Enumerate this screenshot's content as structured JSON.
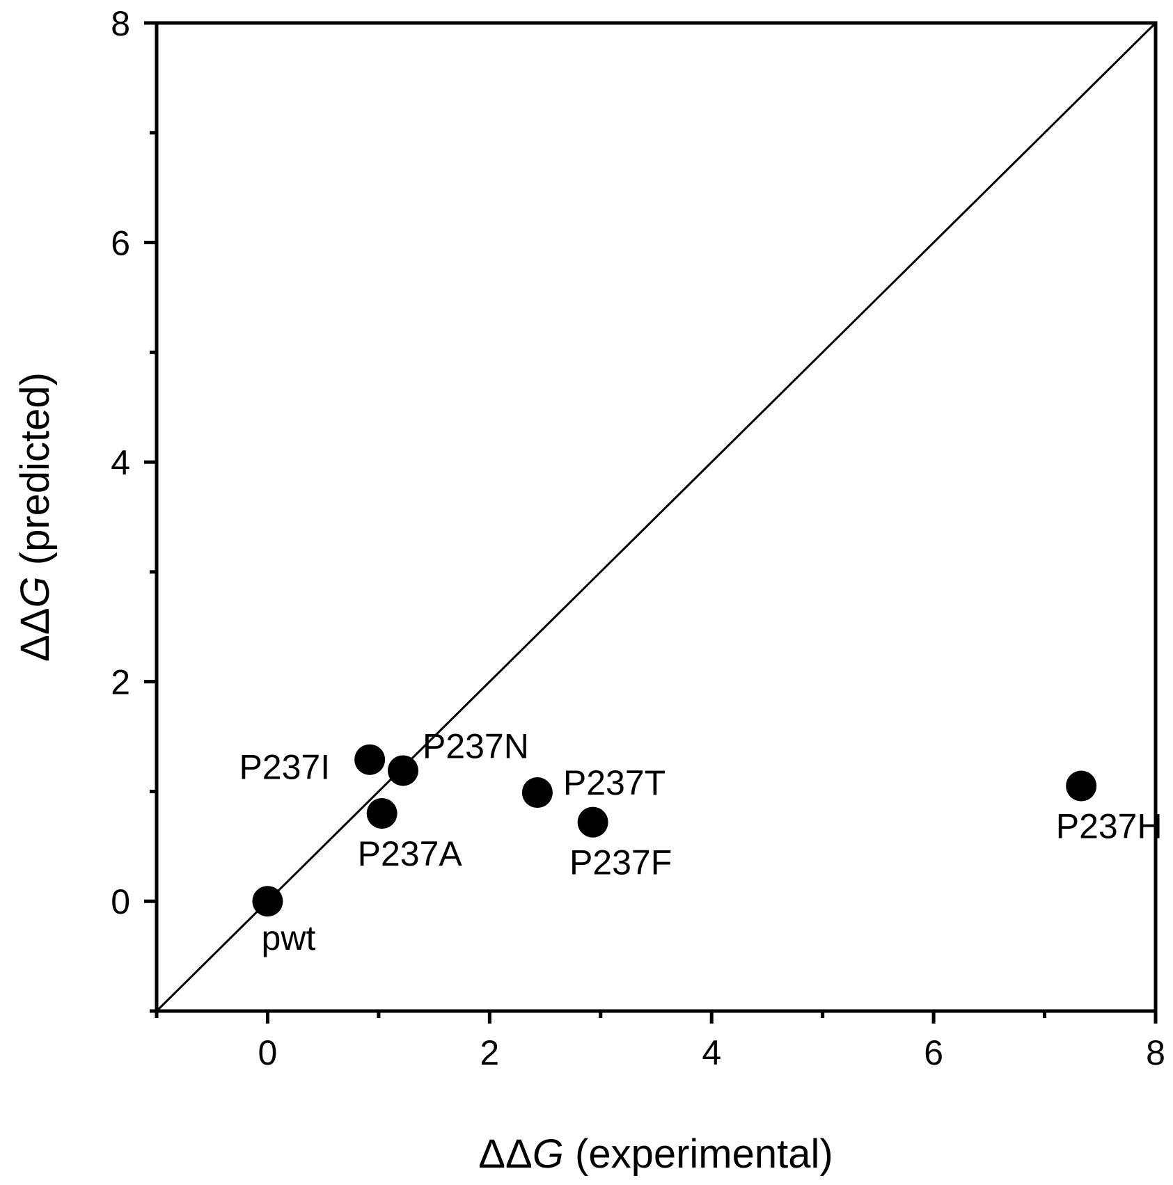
{
  "chart_data": {
    "type": "scatter",
    "title": "",
    "xlabel_prefix": "ΔΔ",
    "xlabel_var": "G",
    "xlabel_suffix": " (experimental)",
    "ylabel_prefix": "ΔΔ",
    "ylabel_var": "G",
    "ylabel_suffix": " (predicted)",
    "xlim": [
      -1,
      8
    ],
    "ylim": [
      -1,
      8
    ],
    "xticks": [
      0,
      2,
      4,
      6,
      8
    ],
    "yticks": [
      0,
      2,
      4,
      6,
      8
    ],
    "xtick_labels": [
      "0",
      "2",
      "4",
      "6",
      "8"
    ],
    "ytick_labels": [
      "0",
      "2",
      "4",
      "6",
      "8"
    ],
    "reference_line": {
      "type": "identity",
      "from": [
        -1,
        -1
      ],
      "to": [
        8,
        8
      ]
    },
    "points": [
      {
        "label": "pwt",
        "x": 0.0,
        "y": 0.0,
        "label_pos": "below"
      },
      {
        "label": "P237I",
        "x": 0.92,
        "y": 1.29,
        "label_pos": "left"
      },
      {
        "label": "P237N",
        "x": 1.22,
        "y": 1.19,
        "label_pos": "above-right"
      },
      {
        "label": "P237A",
        "x": 1.03,
        "y": 0.8,
        "label_pos": "below"
      },
      {
        "label": "P237T",
        "x": 2.43,
        "y": 0.99,
        "label_pos": "right"
      },
      {
        "label": "P237F",
        "x": 2.93,
        "y": 0.72,
        "label_pos": "below"
      },
      {
        "label": "P237H",
        "x": 7.33,
        "y": 1.05,
        "label_pos": "below"
      }
    ]
  }
}
